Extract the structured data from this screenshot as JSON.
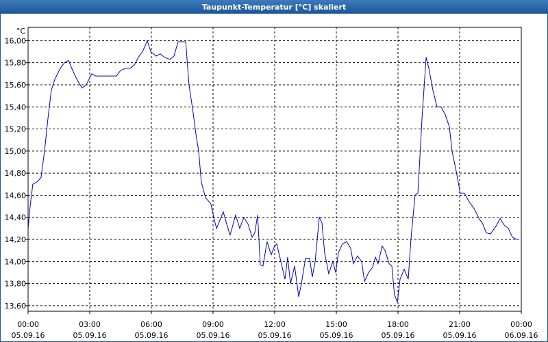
{
  "chart_data": {
    "type": "line",
    "title": "Taupunkt-Temperatur [°C] skaliert",
    "y_unit": "°C",
    "xlim": [
      0,
      24
    ],
    "ylim": [
      13.55,
      16.12
    ],
    "xticks": [
      {
        "value": 0,
        "label": "00:00"
      },
      {
        "value": 3,
        "label": "03:00"
      },
      {
        "value": 6,
        "label": "06:00"
      },
      {
        "value": 9,
        "label": "09:00"
      },
      {
        "value": 12,
        "label": "12:00"
      },
      {
        "value": 15,
        "label": "15:00"
      },
      {
        "value": 18,
        "label": "18:00"
      },
      {
        "value": 21,
        "label": "21:00"
      },
      {
        "value": 24,
        "label": "00:00"
      }
    ],
    "xtick_dates": [
      "05.09.16",
      "05.09.16",
      "05.09.16",
      "05.09.16",
      "05.09.16",
      "05.09.16",
      "05.09.16",
      "05.09.16",
      "06.09.16"
    ],
    "yticks": [
      {
        "value": 13.6,
        "label": "13,60"
      },
      {
        "value": 13.8,
        "label": "13,80"
      },
      {
        "value": 14.0,
        "label": "14,00"
      },
      {
        "value": 14.2,
        "label": "14,20"
      },
      {
        "value": 14.4,
        "label": "14,40"
      },
      {
        "value": 14.6,
        "label": "14,60"
      },
      {
        "value": 14.8,
        "label": "14,80"
      },
      {
        "value": 15.0,
        "label": "15,00"
      },
      {
        "value": 15.2,
        "label": "15,20"
      },
      {
        "value": 15.4,
        "label": "15,40"
      },
      {
        "value": 15.6,
        "label": "15,60"
      },
      {
        "value": 15.8,
        "label": "15,80"
      },
      {
        "value": 16.0,
        "label": "16,00"
      }
    ],
    "grid": true,
    "x": [
      0,
      0.1,
      0.23,
      0.43,
      0.63,
      0.8,
      0.97,
      1.13,
      1.3,
      1.57,
      1.77,
      1.97,
      2.17,
      2.37,
      2.63,
      2.83,
      3.1,
      3.3,
      3.63,
      3.97,
      4.3,
      4.5,
      4.77,
      4.97,
      5.17,
      5.37,
      5.57,
      5.8,
      5.97,
      6.23,
      6.43,
      6.63,
      6.9,
      7.1,
      7.3,
      7.5,
      7.67,
      7.83,
      8.03,
      8.17,
      8.3,
      8.43,
      8.63,
      8.9,
      9.03,
      9.17,
      9.3,
      9.5,
      9.63,
      9.83,
      10.1,
      10.3,
      10.5,
      10.7,
      10.9,
      11.03,
      11.17,
      11.3,
      11.43,
      11.63,
      11.83,
      11.97,
      12.1,
      12.3,
      12.5,
      12.63,
      12.77,
      12.97,
      13.17,
      13.3,
      13.5,
      13.7,
      13.83,
      13.97,
      14.17,
      14.3,
      14.43,
      14.63,
      14.83,
      14.97,
      15.1,
      15.3,
      15.5,
      15.7,
      15.83,
      16.03,
      16.23,
      16.37,
      16.57,
      16.77,
      16.9,
      17.03,
      17.23,
      17.37,
      17.57,
      17.7,
      17.83,
      17.97,
      18.1,
      18.3,
      18.5,
      18.63,
      18.83,
      18.97,
      19.17,
      19.37,
      19.5,
      19.7,
      19.9,
      20.1,
      20.3,
      20.5,
      20.63,
      20.83,
      21.03,
      21.23,
      21.43,
      21.7,
      21.97,
      22.1,
      22.3,
      22.5,
      22.77,
      22.97,
      23.17,
      23.37,
      23.57,
      23.77,
      23.9
    ],
    "series": [
      {
        "color": "#0000c0",
        "values": [
          14.3,
          14.5,
          14.7,
          14.72,
          14.76,
          15.0,
          15.3,
          15.55,
          15.65,
          15.75,
          15.8,
          15.82,
          15.73,
          15.65,
          15.57,
          15.6,
          15.7,
          15.68,
          15.68,
          15.68,
          15.68,
          15.73,
          15.75,
          15.75,
          15.78,
          15.85,
          15.9,
          16.0,
          15.9,
          15.86,
          15.88,
          15.85,
          15.83,
          15.86,
          15.99,
          15.99,
          15.99,
          15.6,
          15.35,
          15.15,
          15.0,
          14.72,
          14.58,
          14.52,
          14.4,
          14.3,
          14.36,
          14.45,
          14.36,
          14.24,
          14.42,
          14.3,
          14.4,
          14.34,
          14.22,
          14.26,
          14.42,
          13.97,
          13.96,
          14.18,
          14.06,
          14.13,
          14.16,
          14.0,
          13.84,
          14.04,
          13.8,
          13.96,
          13.68,
          13.8,
          14.03,
          14.03,
          13.86,
          14.0,
          14.4,
          14.35,
          14.08,
          13.89,
          14.0,
          13.9,
          14.08,
          14.16,
          14.18,
          14.12,
          13.98,
          14.05,
          14.0,
          13.82,
          13.9,
          13.95,
          14.04,
          13.98,
          14.14,
          14.1,
          13.98,
          13.96,
          13.7,
          13.63,
          13.84,
          13.93,
          13.84,
          14.2,
          14.6,
          14.62,
          15.3,
          15.85,
          15.75,
          15.55,
          15.4,
          15.4,
          15.33,
          15.22,
          15.0,
          14.82,
          14.62,
          14.62,
          14.55,
          14.48,
          14.38,
          14.35,
          14.26,
          14.25,
          14.32,
          14.39,
          14.33,
          14.3,
          14.22,
          14.2,
          14.2
        ]
      }
    ]
  }
}
